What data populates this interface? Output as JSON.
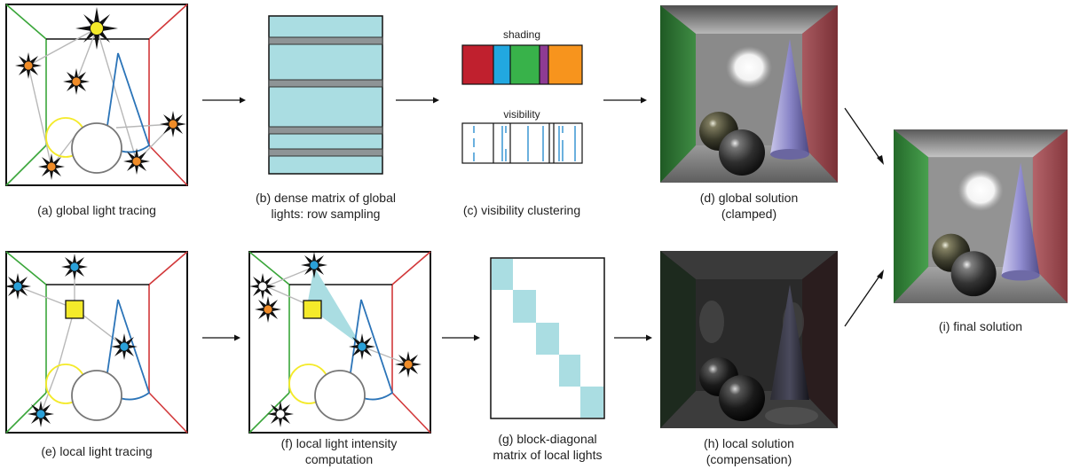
{
  "captions": {
    "a": "(a) global light tracing",
    "b1": "(b) dense matrix of global",
    "b2": "lights: row sampling",
    "c": "(c) visibility clustering",
    "d1": "(d) global solution",
    "d2": "(clamped)",
    "e": "(e) local light tracing",
    "f1": "(f) local light intensity",
    "f2": "computation",
    "g1": "(g) block-diagonal",
    "g2": "matrix of local lights",
    "h1": "(h) local solution",
    "h2": "(compensation)",
    "i": "(i) final solution"
  },
  "labels": {
    "shading": "shading",
    "visibility": "visibility"
  },
  "colors": {
    "green_wall": "#3aa63a",
    "red_wall": "#d2383a",
    "cone": "#2b74b8",
    "yellow": "#f4ea2a",
    "orange_light": "#f08c28",
    "blue_light": "#2aa0d8",
    "matrix_fill": "#aadde2",
    "row_gray": "#8e9496",
    "shading": [
      "#c0202e",
      "#22a8e0",
      "#38b24a",
      "#8e3b93",
      "#f7941d"
    ],
    "vis_line": "#2b8ed0"
  }
}
